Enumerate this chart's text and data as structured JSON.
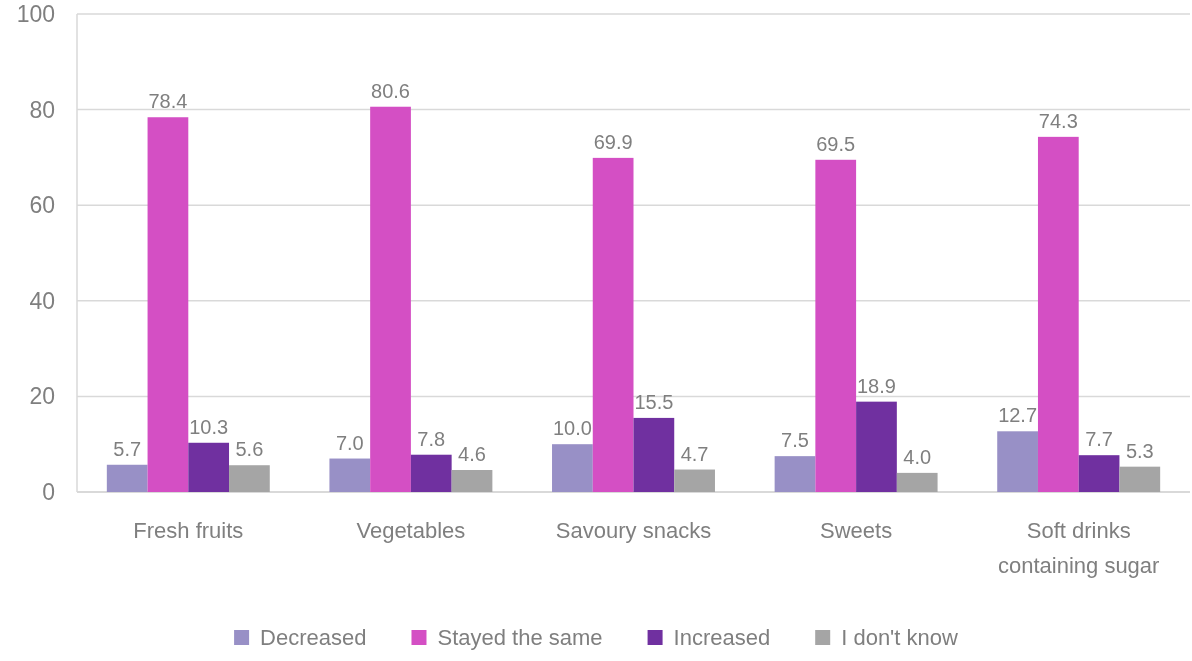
{
  "chart_data": {
    "type": "bar",
    "categories": [
      "Fresh fruits",
      "Vegetables",
      "Savoury snacks",
      "Sweets",
      "Soft drinks containing sugar"
    ],
    "series": [
      {
        "name": "Decreased",
        "color": "#9890c6",
        "values": [
          5.7,
          7.0,
          10.0,
          7.5,
          12.7
        ],
        "value_labels": [
          "5.7",
          "7.0",
          "10.0",
          "7.5",
          "12.7"
        ]
      },
      {
        "name": "Stayed the same",
        "color": "#d44fc4",
        "values": [
          78.4,
          80.6,
          69.9,
          69.5,
          74.3
        ],
        "value_labels": [
          "78.4",
          "80.6",
          "69.9",
          "69.5",
          "74.3"
        ]
      },
      {
        "name": "Increased",
        "color": "#7030a0",
        "values": [
          10.3,
          7.8,
          15.5,
          18.9,
          7.7
        ],
        "value_labels": [
          "10.3",
          "7.8",
          "15.5",
          "18.9",
          "7.7"
        ]
      },
      {
        "name": "I don't know",
        "color": "#a5a5a5",
        "values": [
          5.6,
          4.6,
          4.7,
          4.0,
          5.3
        ],
        "value_labels": [
          "5.6",
          "4.6",
          "4.7",
          "4.0",
          "5.3"
        ]
      }
    ],
    "ylim": [
      0,
      100
    ],
    "yticks": [
      0,
      20,
      40,
      60,
      80,
      100
    ],
    "grid": "y",
    "legend": "bottom"
  }
}
